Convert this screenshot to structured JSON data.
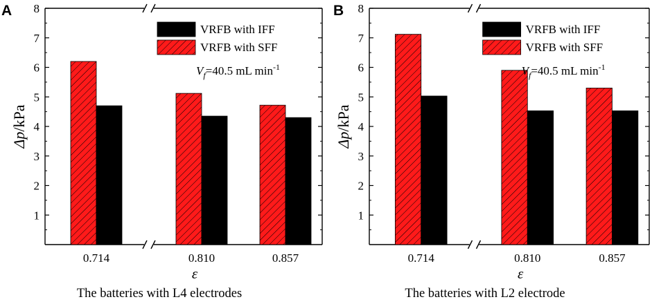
{
  "colors": {
    "sff_fill": "#ff1a1a",
    "sff_hatch": "#000000",
    "iff_fill": "#000000",
    "axis": "#000000"
  },
  "chart_data": [
    {
      "type": "bar",
      "panel_label": "A",
      "title": "The batteries with L4 electrodes",
      "xlabel": "ε",
      "ylabel_symbol": "Δp",
      "ylabel_unit": "/kPa",
      "ylim": [
        0,
        8
      ],
      "yticks": [
        "1",
        "2",
        "3",
        "4",
        "5",
        "6",
        "7",
        "8"
      ],
      "categories": [
        "0.714",
        "0.810",
        "0.857"
      ],
      "series": [
        {
          "name": "VRFB with SFF",
          "style": "hatched-red",
          "values": [
            6.2,
            5.12,
            4.72
          ]
        },
        {
          "name": "VRFB with IFF",
          "style": "solid-black",
          "values": [
            4.7,
            4.35,
            4.3
          ]
        }
      ],
      "legend": {
        "entries": [
          "VRFB with IFF",
          "VRFB with SFF"
        ],
        "placement": "top-right"
      },
      "annotation": {
        "v": "V",
        "sub": "f",
        "rest": "=40.5 mL min",
        "sup": "-1"
      }
    },
    {
      "type": "bar",
      "panel_label": "B",
      "title": "The batteries with L2 electrode",
      "xlabel": "ε",
      "ylabel_symbol": "Δp",
      "ylabel_unit": "/kPa",
      "ylim": [
        0,
        8
      ],
      "yticks": [
        "1",
        "2",
        "3",
        "4",
        "5",
        "6",
        "7",
        "8"
      ],
      "categories": [
        "0.714",
        "0.810",
        "0.857"
      ],
      "series": [
        {
          "name": "VRFB with SFF",
          "style": "hatched-red",
          "values": [
            7.12,
            5.9,
            5.3
          ]
        },
        {
          "name": "VRFB with IFF",
          "style": "solid-black",
          "values": [
            5.03,
            4.53,
            4.53
          ]
        }
      ],
      "legend": {
        "entries": [
          "VRFB with IFF",
          "VRFB with SFF"
        ],
        "placement": "top-right"
      },
      "annotation": {
        "v": "V",
        "sub": "f",
        "rest": "=40.5 mL min",
        "sup": "-1"
      }
    }
  ]
}
